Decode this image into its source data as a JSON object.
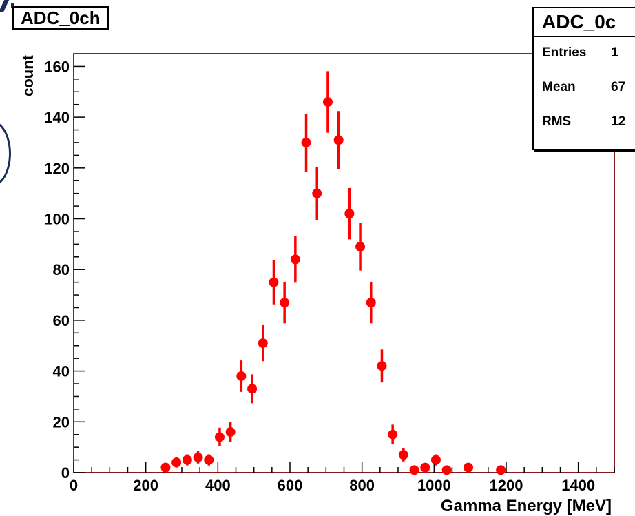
{
  "chart_data": {
    "type": "scatter",
    "title": "ADC_0ch",
    "xlabel": "Gamma Energy [MeV]",
    "ylabel": "count",
    "xlim": [
      0,
      1500
    ],
    "ylim": [
      0,
      165
    ],
    "x_ticks": [
      "0",
      "200",
      "400",
      "600",
      "800",
      "1000",
      "1200",
      "1400"
    ],
    "y_ticks": [
      "0",
      "20",
      "40",
      "60",
      "80",
      "100",
      "120",
      "140",
      "160"
    ],
    "grid": false,
    "legend": "top-right stats box",
    "marker_color": "#ff0000",
    "series": [
      {
        "x": [
          255,
          285,
          315,
          345,
          375,
          405,
          435,
          465,
          495,
          525,
          555,
          585,
          615,
          645,
          675,
          705,
          735,
          765,
          795,
          825,
          855,
          885,
          915,
          945,
          975,
          1005,
          1035,
          1095,
          1185
        ],
        "y": [
          2,
          4,
          5,
          6,
          5,
          14,
          16,
          38,
          33,
          51,
          75,
          67,
          84,
          130,
          110,
          146,
          131,
          102,
          89,
          67,
          42,
          15,
          7,
          1,
          2,
          5,
          1,
          2,
          1
        ],
        "err": [
          1.4,
          2,
          2.2,
          2.4,
          2.2,
          3.7,
          4,
          6.2,
          5.7,
          7.1,
          8.7,
          8.2,
          9.2,
          11.4,
          10.5,
          12.1,
          11.4,
          10.1,
          9.4,
          8.2,
          6.5,
          3.9,
          2.6,
          1,
          1.4,
          2.2,
          1,
          1.4,
          1
        ]
      }
    ],
    "stats": {
      "title": "ADC_0c",
      "rows": [
        {
          "label": "Entries",
          "value": "1"
        },
        {
          "label": "Mean",
          "value": "67"
        },
        {
          "label": "RMS",
          "value": "12"
        }
      ]
    }
  }
}
